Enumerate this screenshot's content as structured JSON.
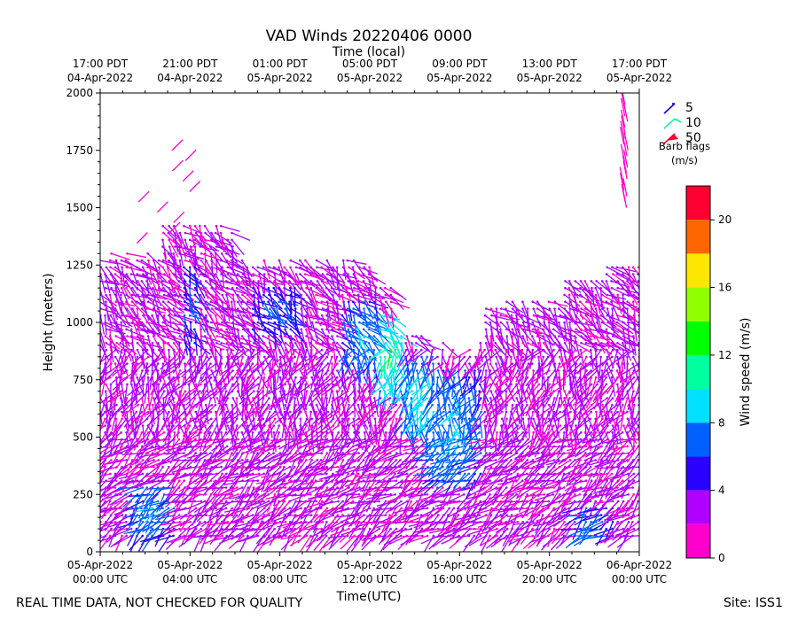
{
  "chart_data": {
    "type": "wind-barb",
    "title": "VAD Winds 20220406 0000",
    "top_axis_label": "Time (local)",
    "top_ticks": [
      [
        "17:00 PDT",
        "04-Apr-2022"
      ],
      [
        "21:00 PDT",
        "04-Apr-2022"
      ],
      [
        "01:00 PDT",
        "05-Apr-2022"
      ],
      [
        "05:00 PDT",
        "05-Apr-2022"
      ],
      [
        "09:00 PDT",
        "05-Apr-2022"
      ],
      [
        "13:00 PDT",
        "05-Apr-2022"
      ],
      [
        "17:00 PDT",
        "05-Apr-2022"
      ]
    ],
    "xlabel": "Time(UTC)",
    "x_ticks": [
      [
        "05-Apr-2022",
        "00:00 UTC"
      ],
      [
        "05-Apr-2022",
        "04:00 UTC"
      ],
      [
        "05-Apr-2022",
        "08:00 UTC"
      ],
      [
        "05-Apr-2022",
        "12:00 UTC"
      ],
      [
        "05-Apr-2022",
        "16:00 UTC"
      ],
      [
        "05-Apr-2022",
        "20:00 UTC"
      ],
      [
        "06-Apr-2022",
        "00:00 UTC"
      ]
    ],
    "xlim": [
      "2022-04-05T00:00Z",
      "2022-04-06T00:00Z"
    ],
    "ylabel": "Height (meters)",
    "ylim": [
      0,
      2000
    ],
    "y_ticks": [
      0,
      250,
      500,
      750,
      1000,
      1250,
      1500,
      1750,
      2000
    ],
    "colorbar": {
      "label": "Wind speed (m/s)",
      "range": [
        0,
        22
      ],
      "ticks": [
        0,
        4,
        8,
        12,
        16,
        20
      ],
      "colors": [
        "#ff00cc",
        "#b000ff",
        "#2a00ff",
        "#0060ff",
        "#00e0ff",
        "#00ff9f",
        "#00ff00",
        "#90ff00",
        "#ffe600",
        "#ff6600",
        "#ff0033"
      ]
    },
    "barb_legend": {
      "title": "Barb flags",
      "units": "(m/s)",
      "entries": [
        {
          "value": "5",
          "color": "#0000ff"
        },
        {
          "value": "10",
          "color": "#00ff99"
        },
        {
          "value": "50",
          "color": "#ff0033"
        }
      ]
    },
    "speed_regions": [
      {
        "t": [
          1.5,
          3.5
        ],
        "h": [
          60,
          300
        ],
        "speed": 7.5
      },
      {
        "t": [
          3.6,
          4.4
        ],
        "h": [
          900,
          1250
        ],
        "speed": 6
      },
      {
        "t": [
          6.6,
          8.8
        ],
        "h": [
          950,
          1150
        ],
        "speed": 6
      },
      {
        "t": [
          10.8,
          12.4
        ],
        "h": [
          800,
          1100
        ],
        "speed": 8
      },
      {
        "t": [
          12.3,
          13.6
        ],
        "h": [
          700,
          1050
        ],
        "speed": 11
      },
      {
        "t": [
          13.6,
          15.0
        ],
        "h": [
          500,
          850
        ],
        "speed": 9
      },
      {
        "t": [
          14.6,
          17.0
        ],
        "h": [
          300,
          800
        ],
        "speed": 8
      },
      {
        "t": [
          21.2,
          22.8
        ],
        "h": [
          0,
          200
        ],
        "speed": 7
      }
    ]
  },
  "footer": {
    "left": "REAL TIME DATA, NOT CHECKED FOR QUALITY",
    "right": "Site: ISS1"
  }
}
